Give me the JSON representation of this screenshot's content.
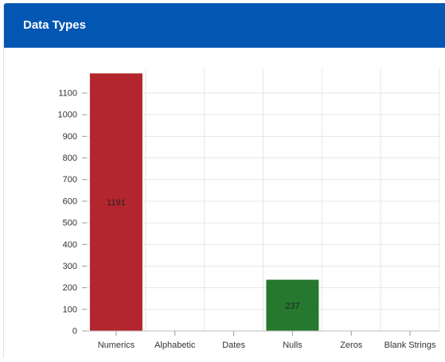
{
  "card": {
    "title": "Data Types"
  },
  "colors": {
    "header": "#0456b3",
    "numerics_bar": "#b3262e",
    "nulls_bar": "#26782f",
    "grid": "#e6e6e6",
    "axis_text": "#333333"
  },
  "chart_data": {
    "type": "bar",
    "categories": [
      "Numerics",
      "Alphabetic",
      "Dates",
      "Nulls",
      "Zeros",
      "Blank Strings"
    ],
    "values": [
      1191,
      0,
      0,
      237,
      0,
      0
    ],
    "data_labels": [
      "1191",
      "",
      "",
      "237",
      "",
      ""
    ],
    "bar_colors": [
      "#b3262e",
      "#b3262e",
      "#b3262e",
      "#26782f",
      "#26782f",
      "#26782f"
    ],
    "yticks": [
      0,
      100,
      200,
      300,
      400,
      500,
      600,
      700,
      800,
      900,
      1000,
      1100
    ],
    "ylim": [
      0,
      1100
    ],
    "title": "",
    "xlabel": "",
    "ylabel": "",
    "grid": true,
    "legend": "none"
  }
}
